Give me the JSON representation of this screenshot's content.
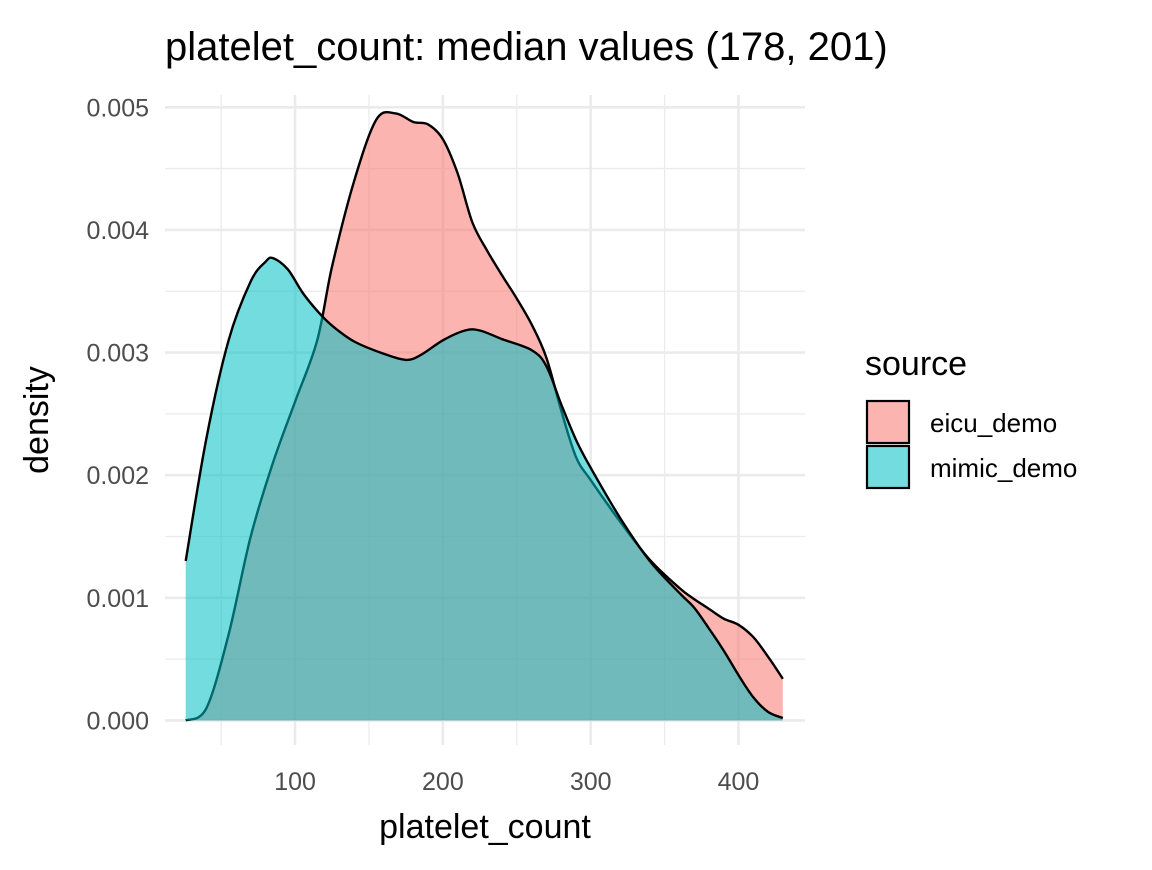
{
  "chart_data": {
    "type": "area",
    "subtype": "density",
    "title": "platelet_count: median values (178, 201)",
    "xlabel": "platelet_count",
    "ylabel": "density",
    "xlim": [
      12,
      445
    ],
    "ylim": [
      -0.0002,
      0.0051
    ],
    "x_ticks": [
      100,
      200,
      300,
      400
    ],
    "x_minor_ticks": [
      50,
      150,
      250,
      350,
      450
    ],
    "y_ticks": [
      0.0,
      0.001,
      0.002,
      0.003,
      0.004,
      0.005
    ],
    "y_tick_labels": [
      "0.000",
      "0.001",
      "0.002",
      "0.003",
      "0.004",
      "0.005"
    ],
    "y_minor_ticks": [
      0.0005,
      0.0015,
      0.0025,
      0.0035,
      0.0045
    ],
    "grid": true,
    "theme": "minimal",
    "legend": {
      "title": "source",
      "placement": "right"
    },
    "series": [
      {
        "name": "eicu_demo",
        "color": "#F8766D",
        "x": [
          26,
          40,
          55,
          70,
          85,
          100,
          115,
          125,
          140,
          155,
          168,
          180,
          190,
          200,
          210,
          220,
          230,
          240,
          250,
          260,
          270,
          280,
          290,
          300,
          320,
          340,
          360,
          370,
          380,
          390,
          400,
          410,
          420,
          430
        ],
        "values": [
          0.0,
          0.0001,
          0.0007,
          0.0015,
          0.0021,
          0.0026,
          0.0031,
          0.0037,
          0.0044,
          0.0049,
          0.00495,
          0.00488,
          0.00486,
          0.00474,
          0.00446,
          0.00406,
          0.00383,
          0.00363,
          0.00344,
          0.00323,
          0.00296,
          0.00253,
          0.00215,
          0.00196,
          0.00162,
          0.00131,
          0.00108,
          0.00099,
          0.00091,
          0.00083,
          0.00078,
          0.00068,
          0.00052,
          0.00034
        ]
      },
      {
        "name": "mimic_demo",
        "color": "#00BFC4",
        "x": [
          26,
          40,
          55,
          70,
          80,
          85,
          95,
          105,
          115,
          125,
          140,
          160,
          175,
          185,
          200,
          215,
          225,
          240,
          260,
          270,
          280,
          290,
          300,
          320,
          340,
          360,
          370,
          380,
          390,
          400,
          410,
          420,
          430
        ],
        "values": [
          0.0013,
          0.0023,
          0.0031,
          0.00358,
          0.00374,
          0.00377,
          0.00368,
          0.00349,
          0.00334,
          0.00322,
          0.00309,
          0.00299,
          0.00294,
          0.00298,
          0.0031,
          0.00318,
          0.00318,
          0.00311,
          0.00302,
          0.00289,
          0.00258,
          0.00229,
          0.00206,
          0.00165,
          0.0013,
          0.00104,
          0.00092,
          0.00075,
          0.00057,
          0.00037,
          0.00019,
          7e-05,
          2e-05
        ]
      }
    ]
  }
}
